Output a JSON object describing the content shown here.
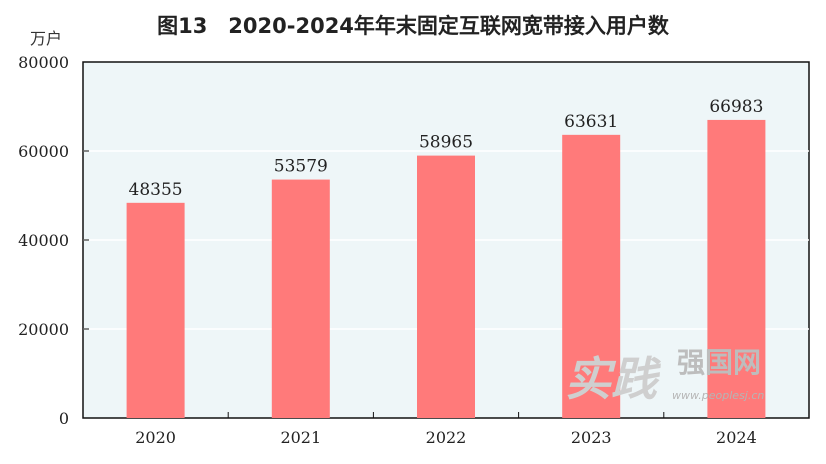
{
  "chart_data": {
    "type": "bar",
    "title": "图13　2020-2024年年末固定互联网宽带接入用户数",
    "ylabel": "万户",
    "xlabel": "",
    "categories": [
      "2020",
      "2021",
      "2022",
      "2023",
      "2024"
    ],
    "values": [
      48355,
      53579,
      58965,
      63631,
      66983
    ],
    "ylim": [
      0,
      80000
    ],
    "yticks": [
      0,
      20000,
      40000,
      60000,
      80000
    ],
    "grid": true,
    "bar_color": "#ff7a7a",
    "plot_background": "#eef6f8",
    "grid_color": "#ffffff"
  },
  "watermark": {
    "script": "实践",
    "brand": "强国网",
    "url": "www.peoplesj.cn"
  }
}
